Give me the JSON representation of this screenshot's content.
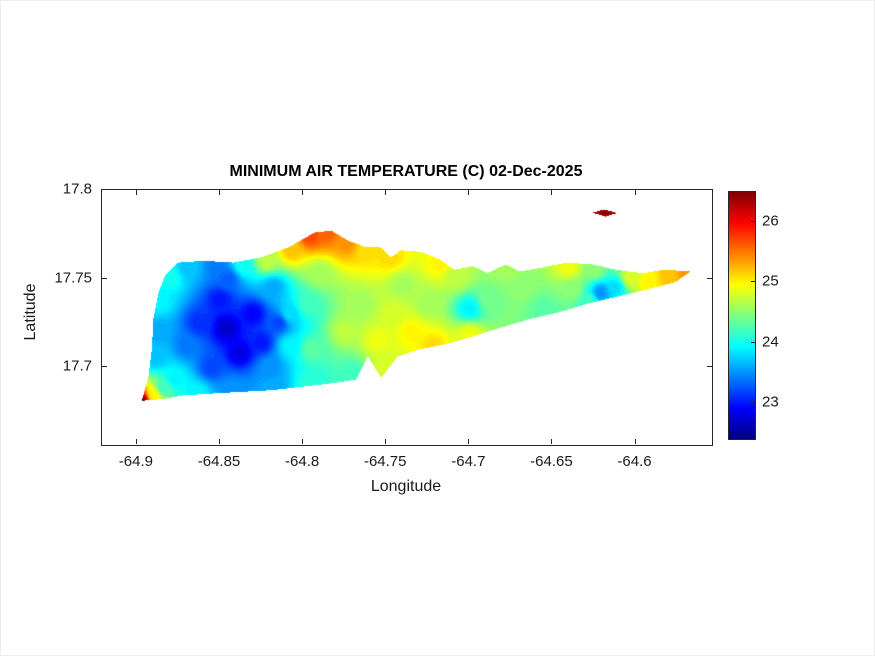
{
  "chart_data": {
    "type": "heatmap",
    "title": "MINIMUM AIR TEMPERATURE (C) 02-Dec-2025",
    "xlabel": "Longitude",
    "ylabel": "Latitude",
    "xlim": [
      -64.921,
      -64.554
    ],
    "ylim": [
      17.656,
      17.8
    ],
    "xticks": [
      -64.9,
      -64.85,
      -64.8,
      -64.75,
      -64.7,
      -64.65,
      -64.6
    ],
    "xtick_labels": [
      "-64.9",
      "-64.85",
      "-64.8",
      "-64.75",
      "-64.7",
      "-64.65",
      "-64.6"
    ],
    "yticks": [
      17.8,
      17.75,
      17.7
    ],
    "ytick_labels": [
      "17.8",
      "17.75",
      "17.7"
    ],
    "grid": false,
    "colormap": "jet",
    "colorbar": {
      "position": "right",
      "cmin": 22.4,
      "cmax": 26.5,
      "ticks": [
        26,
        25,
        24,
        23
      ],
      "tick_labels": [
        "26",
        "25",
        "24",
        "23"
      ]
    },
    "contour_interval": 0.05,
    "island_outline": [
      [
        -64.897,
        17.681
      ],
      [
        -64.893,
        17.695
      ],
      [
        -64.891,
        17.71
      ],
      [
        -64.89,
        17.728
      ],
      [
        -64.887,
        17.742
      ],
      [
        -64.883,
        17.752
      ],
      [
        -64.875,
        17.759
      ],
      [
        -64.86,
        17.76
      ],
      [
        -64.842,
        17.759
      ],
      [
        -64.825,
        17.762
      ],
      [
        -64.808,
        17.768
      ],
      [
        -64.793,
        17.776
      ],
      [
        -64.783,
        17.777
      ],
      [
        -64.772,
        17.771
      ],
      [
        -64.763,
        17.768
      ],
      [
        -64.754,
        17.768
      ],
      [
        -64.747,
        17.762
      ],
      [
        -64.741,
        17.766
      ],
      [
        -64.729,
        17.765
      ],
      [
        -64.718,
        17.761
      ],
      [
        -64.709,
        17.755
      ],
      [
        -64.698,
        17.757
      ],
      [
        -64.689,
        17.753
      ],
      [
        -64.678,
        17.758
      ],
      [
        -64.67,
        17.754
      ],
      [
        -64.657,
        17.756
      ],
      [
        -64.642,
        17.759
      ],
      [
        -64.626,
        17.758
      ],
      [
        -64.612,
        17.755
      ],
      [
        -64.596,
        17.753
      ],
      [
        -64.583,
        17.755
      ],
      [
        -64.567,
        17.754
      ],
      [
        -64.576,
        17.748
      ],
      [
        -64.592,
        17.744
      ],
      [
        -64.61,
        17.74
      ],
      [
        -64.628,
        17.736
      ],
      [
        -64.646,
        17.731
      ],
      [
        -64.664,
        17.727
      ],
      [
        -64.682,
        17.722
      ],
      [
        -64.699,
        17.717
      ],
      [
        -64.714,
        17.713
      ],
      [
        -64.73,
        17.71
      ],
      [
        -64.743,
        17.706
      ],
      [
        -64.753,
        17.694
      ],
      [
        -64.761,
        17.706
      ],
      [
        -64.768,
        17.693
      ],
      [
        -64.781,
        17.691
      ],
      [
        -64.8,
        17.689
      ],
      [
        -64.818,
        17.687
      ],
      [
        -64.837,
        17.686
      ],
      [
        -64.856,
        17.685
      ],
      [
        -64.872,
        17.684
      ],
      [
        -64.884,
        17.682
      ]
    ],
    "buck_island_outline": [
      [
        -64.626,
        17.7872
      ],
      [
        -64.619,
        17.789
      ],
      [
        -64.611,
        17.787
      ],
      [
        -64.618,
        17.785
      ]
    ],
    "temperature_points": [
      [
        -64.846,
        17.722,
        22.7
      ],
      [
        -64.838,
        17.708,
        22.8
      ],
      [
        -64.85,
        17.738,
        23.0
      ],
      [
        -64.862,
        17.725,
        23.1
      ],
      [
        -64.83,
        17.73,
        22.9
      ],
      [
        -64.825,
        17.714,
        23.0
      ],
      [
        -64.815,
        17.725,
        23.2
      ],
      [
        -64.855,
        17.7,
        23.2
      ],
      [
        -64.87,
        17.712,
        23.4
      ],
      [
        -64.845,
        17.75,
        23.3
      ],
      [
        -64.818,
        17.745,
        23.6
      ],
      [
        -64.808,
        17.73,
        23.8
      ],
      [
        -64.808,
        17.712,
        23.9
      ],
      [
        -64.82,
        17.7,
        23.5
      ],
      [
        -64.888,
        17.705,
        23.7
      ],
      [
        -64.888,
        17.72,
        23.6
      ],
      [
        -64.886,
        17.737,
        23.9
      ],
      [
        -64.88,
        17.75,
        24.0
      ],
      [
        -64.868,
        17.756,
        23.7
      ],
      [
        -64.852,
        17.757,
        23.4
      ],
      [
        -64.836,
        17.757,
        24.0
      ],
      [
        -64.822,
        17.76,
        24.7
      ],
      [
        -64.897,
        17.681,
        26.5
      ],
      [
        -64.89,
        17.684,
        25.0
      ],
      [
        -64.884,
        17.688,
        24.2
      ],
      [
        -64.877,
        17.693,
        23.9
      ],
      [
        -64.864,
        17.685,
        23.9
      ],
      [
        -64.843,
        17.687,
        23.5
      ],
      [
        -64.818,
        17.688,
        23.6
      ],
      [
        -64.795,
        17.691,
        24.1
      ],
      [
        -64.807,
        17.766,
        25.2
      ],
      [
        -64.796,
        17.774,
        25.7
      ],
      [
        -64.786,
        17.776,
        25.6
      ],
      [
        -64.774,
        17.77,
        25.4
      ],
      [
        -64.762,
        17.766,
        25.1
      ],
      [
        -64.748,
        17.762,
        25.1
      ],
      [
        -64.718,
        17.758,
        25.0
      ],
      [
        -64.797,
        17.735,
        24.2
      ],
      [
        -64.795,
        17.71,
        24.3
      ],
      [
        -64.79,
        17.753,
        24.6
      ],
      [
        -64.775,
        17.72,
        24.7
      ],
      [
        -64.765,
        17.735,
        24.6
      ],
      [
        -64.755,
        17.715,
        24.9
      ],
      [
        -64.745,
        17.73,
        24.8
      ],
      [
        -64.735,
        17.72,
        25.0
      ],
      [
        -64.74,
        17.746,
        24.6
      ],
      [
        -64.725,
        17.736,
        24.6
      ],
      [
        -64.77,
        17.697,
        24.2
      ],
      [
        -64.751,
        17.701,
        24.8
      ],
      [
        -64.722,
        17.712,
        25.1
      ],
      [
        -64.7,
        17.718,
        24.9
      ],
      [
        -64.7,
        17.733,
        23.9
      ],
      [
        -64.708,
        17.751,
        24.7
      ],
      [
        -64.688,
        17.738,
        24.4
      ],
      [
        -64.677,
        17.757,
        24.6
      ],
      [
        -64.668,
        17.745,
        24.5
      ],
      [
        -64.655,
        17.733,
        24.3
      ],
      [
        -64.64,
        17.756,
        24.9
      ],
      [
        -64.638,
        17.744,
        24.5
      ],
      [
        -64.628,
        17.737,
        24.2
      ],
      [
        -64.621,
        17.742,
        23.5
      ],
      [
        -64.612,
        17.745,
        23.8
      ],
      [
        -64.625,
        17.755,
        24.5
      ],
      [
        -64.603,
        17.75,
        24.8
      ],
      [
        -64.592,
        17.748,
        25.0
      ],
      [
        -64.58,
        17.751,
        25.2
      ],
      [
        -64.569,
        17.753,
        25.4
      ],
      [
        -64.618,
        17.7875,
        26.4
      ]
    ]
  }
}
